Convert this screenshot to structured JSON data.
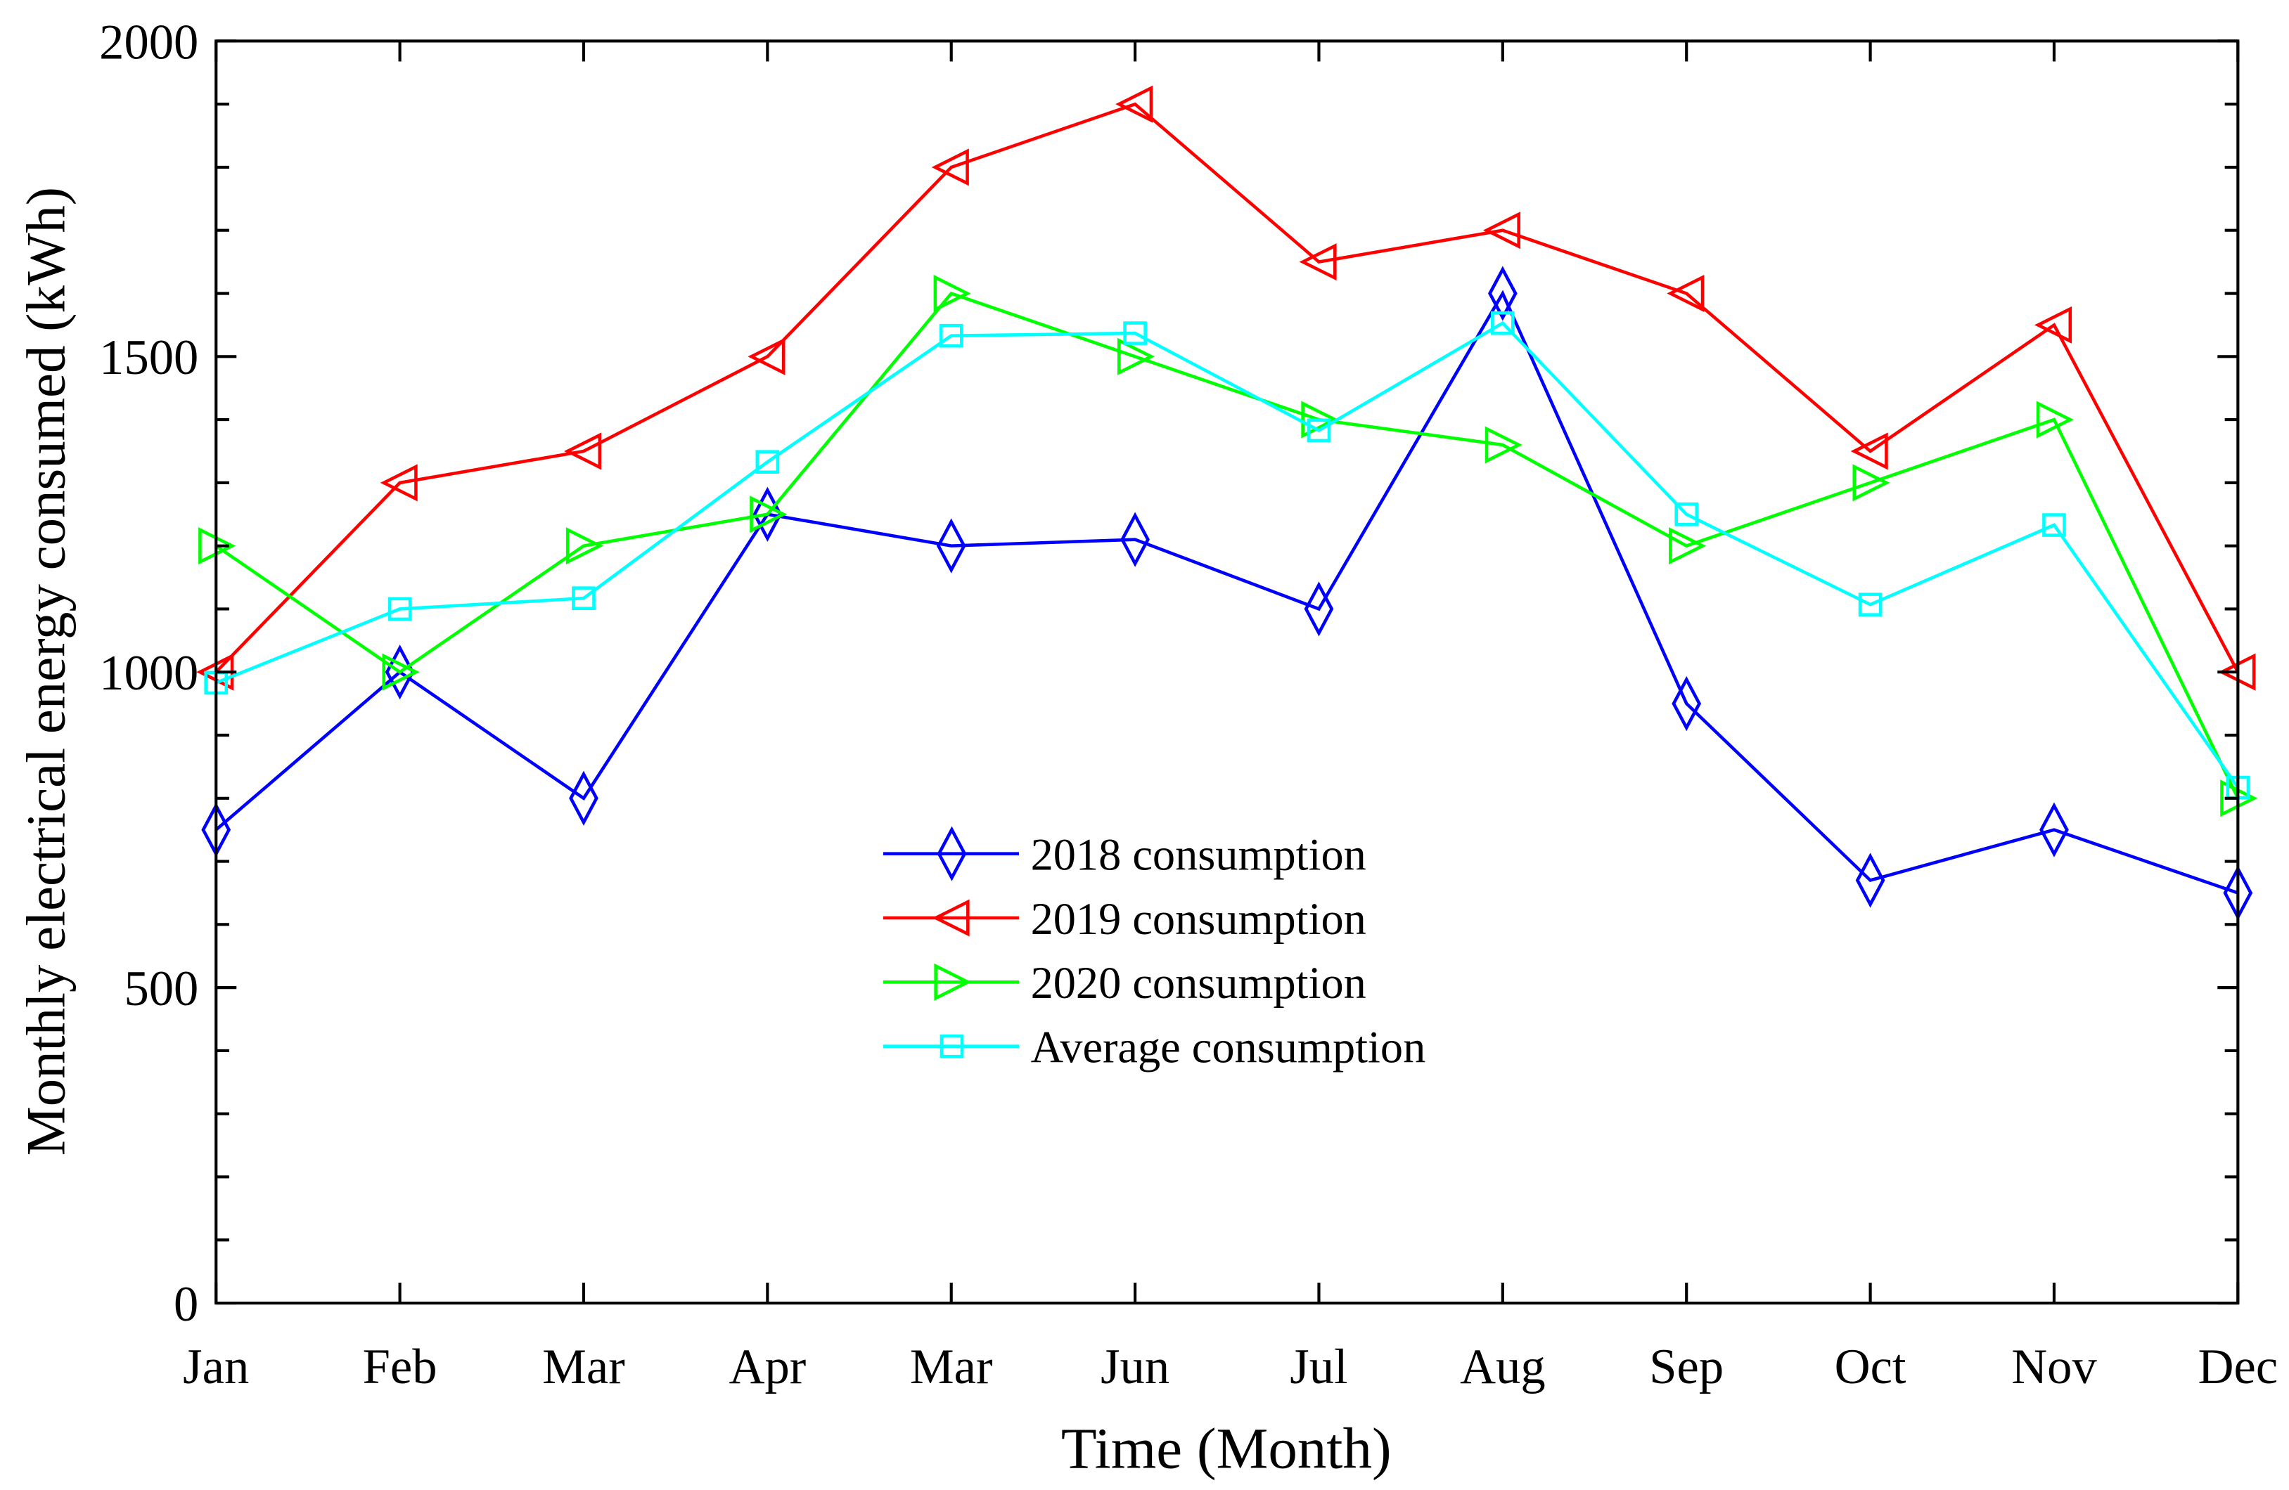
{
  "chart_data": {
    "type": "line",
    "title": "",
    "xlabel": "Time (Month)",
    "ylabel": "Monthly electrical energy consumed (kWh)",
    "categories": [
      "Jan",
      "Feb",
      "Mar",
      "Apr",
      "Mar",
      "Jun",
      "Jul",
      "Aug",
      "Sep",
      "Oct",
      "Nov",
      "Dec"
    ],
    "ylim": [
      0,
      2000
    ],
    "yticks": [
      0,
      500,
      1000,
      1500,
      2000
    ],
    "legend_position": "center",
    "grid": false,
    "series": [
      {
        "name": "2018 consumption",
        "color": "#0000ff",
        "marker": "diamond",
        "values": [
          750,
          1000,
          800,
          1250,
          1200,
          1210,
          1100,
          1600,
          950,
          670,
          750,
          650
        ]
      },
      {
        "name": "2019 consumption",
        "color": "#ff0000",
        "marker": "triangle-left",
        "values": [
          1000,
          1300,
          1350,
          1500,
          1800,
          1900,
          1650,
          1700,
          1600,
          1350,
          1550,
          1000
        ]
      },
      {
        "name": "2020 consumption",
        "color": "#00ff00",
        "marker": "triangle-right",
        "values": [
          1200,
          1000,
          1200,
          1250,
          1600,
          1500,
          1400,
          1360,
          1200,
          1300,
          1400,
          800
        ]
      },
      {
        "name": "Average consumption",
        "color": "#00ffff",
        "marker": "square",
        "values": [
          983,
          1100,
          1117,
          1333,
          1533,
          1537,
          1383,
          1553,
          1250,
          1107,
          1233,
          817
        ]
      }
    ]
  }
}
